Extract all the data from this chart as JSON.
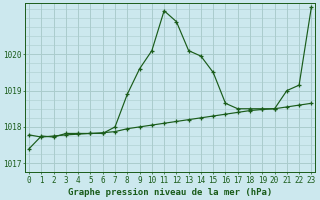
{
  "title": "Graphe pression niveau de la mer (hPa)",
  "bg_color": "#cce8ee",
  "grid_color": "#aacccc",
  "line_color": "#1a5c1a",
  "xlim": [
    -0.3,
    23.3
  ],
  "ylim": [
    1016.75,
    1021.4
  ],
  "yticks": [
    1017,
    1018,
    1019,
    1020
  ],
  "xticks": [
    0,
    1,
    2,
    3,
    4,
    5,
    6,
    7,
    8,
    9,
    10,
    11,
    12,
    13,
    14,
    15,
    16,
    17,
    18,
    19,
    20,
    21,
    22,
    23
  ],
  "series1": [
    1017.4,
    1017.75,
    1017.72,
    1017.82,
    1017.82,
    1017.82,
    1017.82,
    1018.0,
    1018.9,
    1019.6,
    1020.1,
    1021.2,
    1020.9,
    1020.1,
    1019.95,
    1019.5,
    1018.65,
    1018.5,
    1018.5,
    1018.5,
    1018.5,
    1019.0,
    1019.15,
    1021.3
  ],
  "series2": [
    1017.78,
    1017.72,
    1017.75,
    1017.78,
    1017.8,
    1017.82,
    1017.84,
    1017.87,
    1017.95,
    1018.0,
    1018.05,
    1018.1,
    1018.15,
    1018.2,
    1018.25,
    1018.3,
    1018.35,
    1018.4,
    1018.45,
    1018.48,
    1018.5,
    1018.55,
    1018.6,
    1018.65
  ],
  "tick_fontsize": 5.5,
  "label_fontsize": 6.5
}
